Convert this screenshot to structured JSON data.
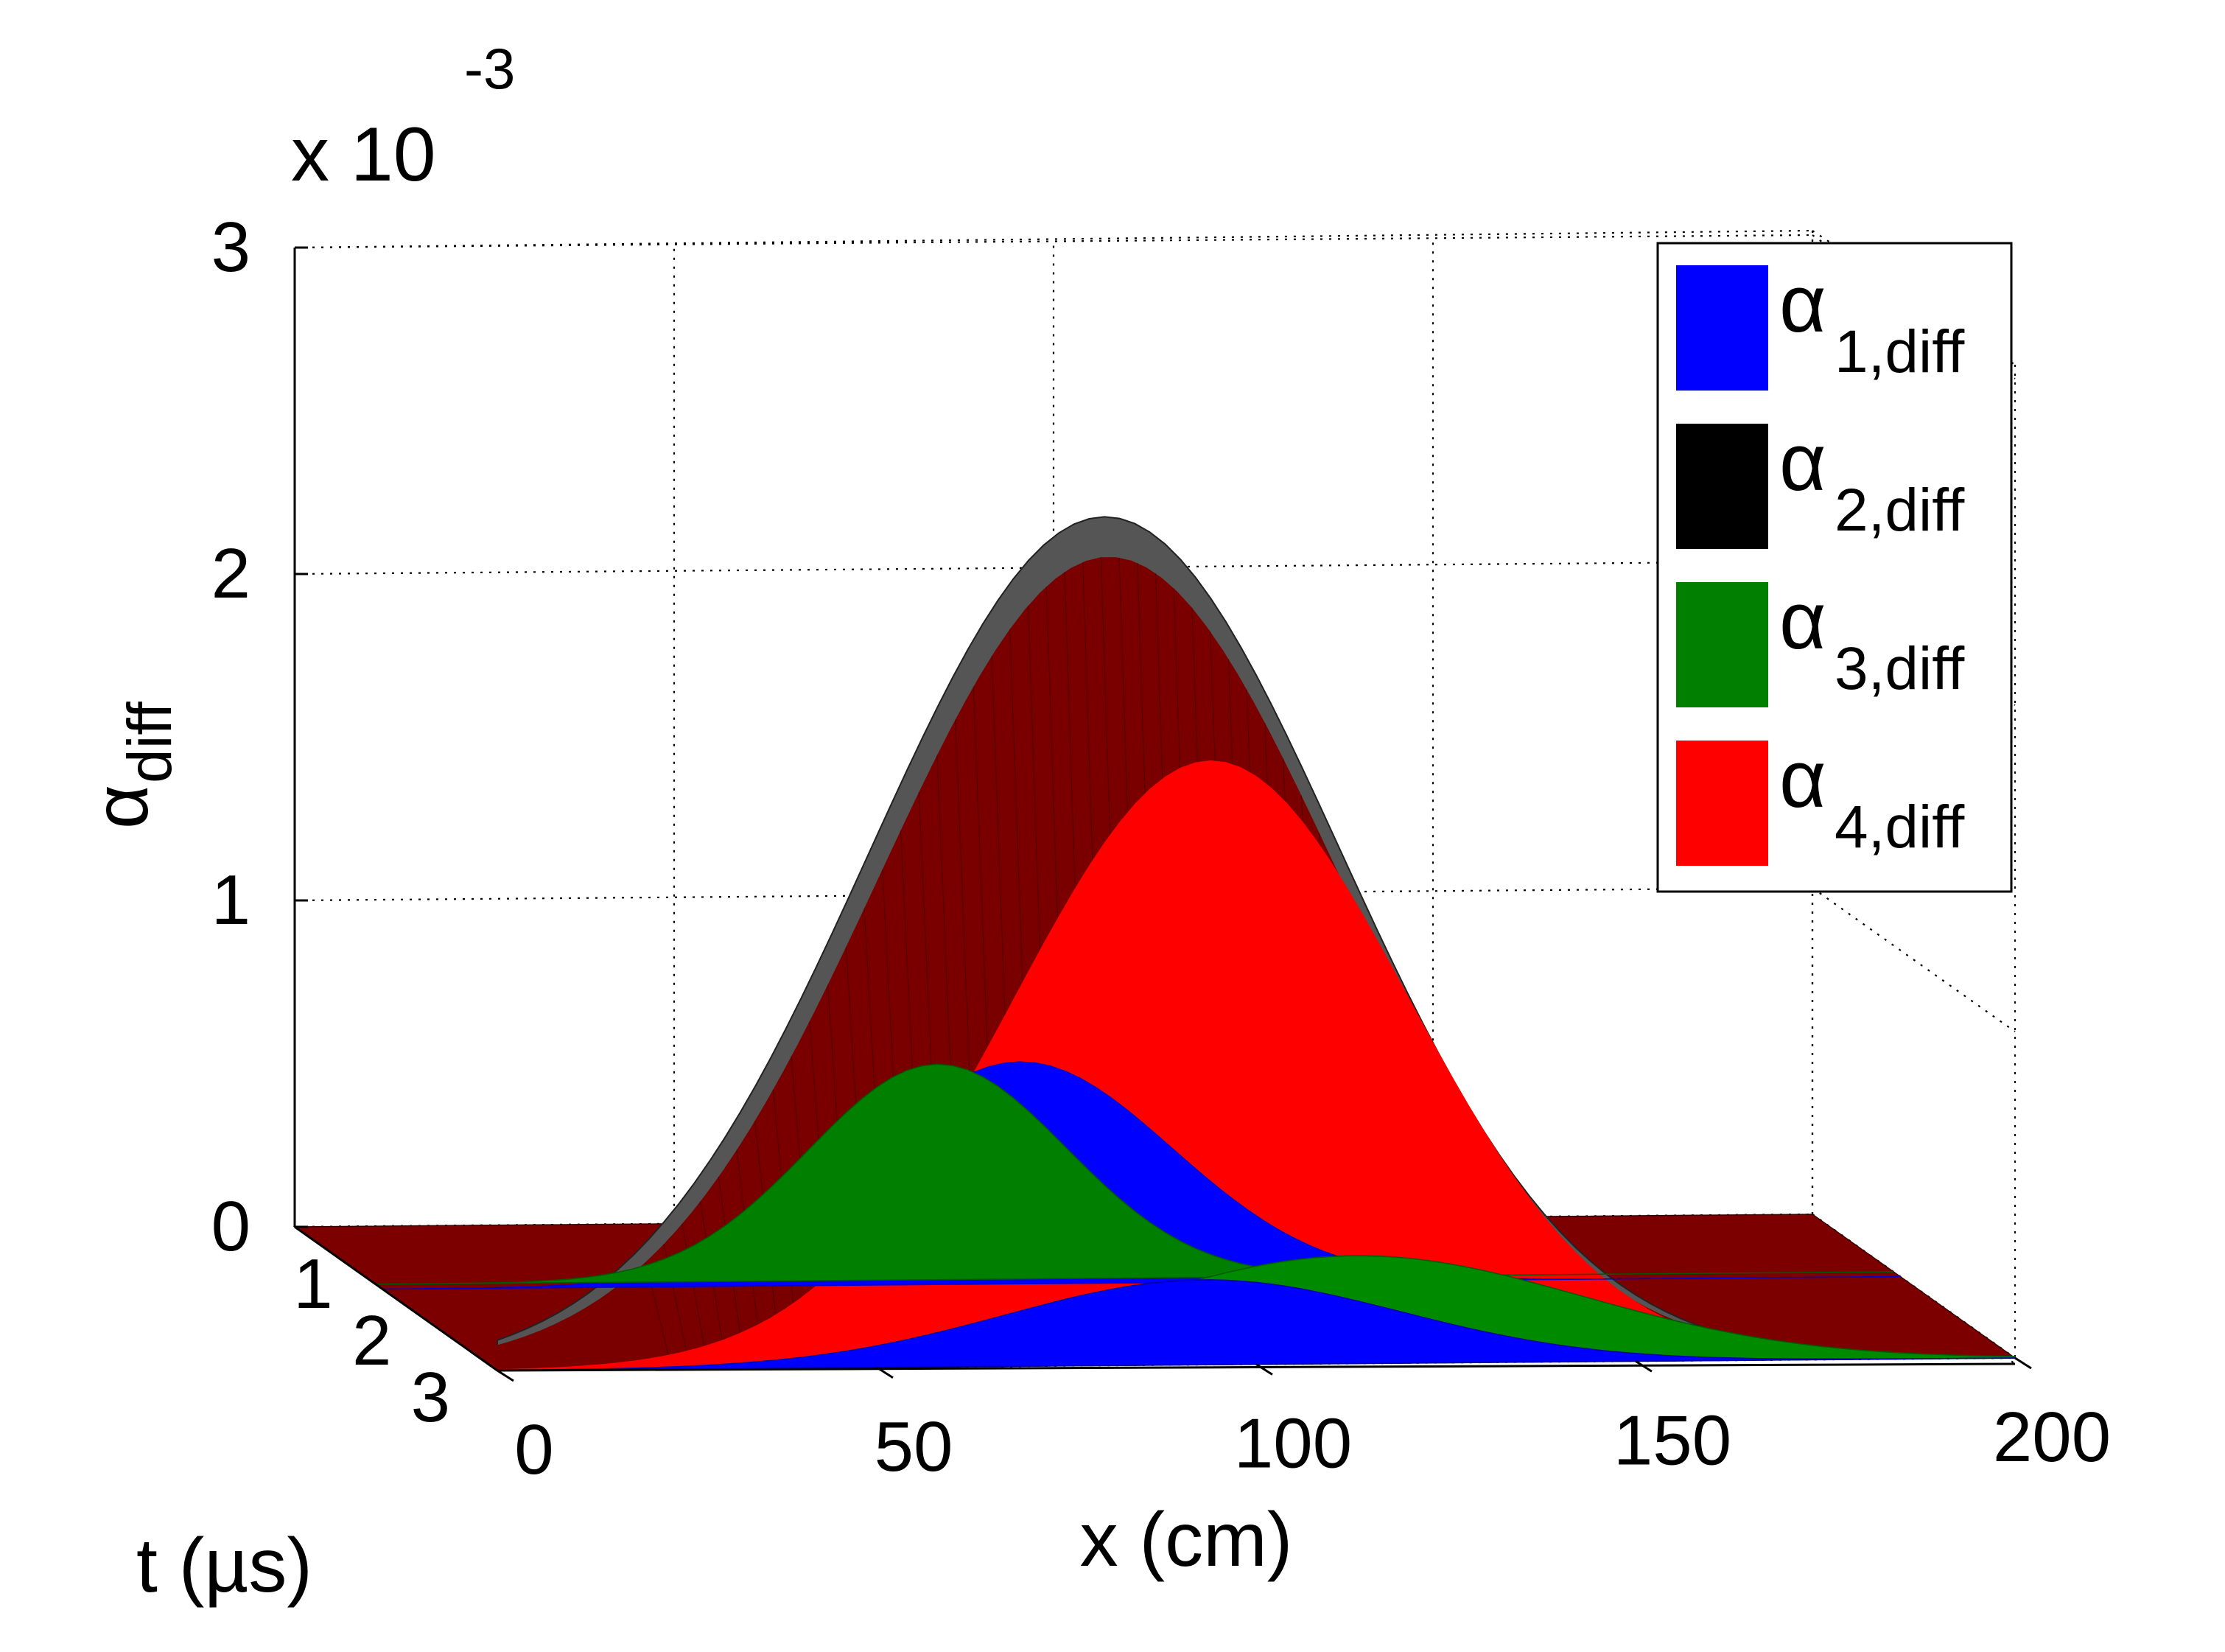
{
  "chart_data": {
    "type": "surface",
    "title": "",
    "exponent_label": {
      "base": "x 10",
      "power": "-3"
    },
    "xlabel": "x (cm)",
    "ylabel": "t (µs)",
    "zlabel": {
      "main": "α",
      "sub": "diff"
    },
    "xlim": [
      0,
      200
    ],
    "ylim": [
      0,
      3
    ],
    "zlim": [
      0,
      3
    ],
    "zscale": 0.001,
    "x_ticks": [
      "0",
      "50",
      "100",
      "150",
      "200"
    ],
    "x_tick_values": [
      0,
      50,
      100,
      150,
      200
    ],
    "t_ticks": [
      "1",
      "2",
      "3"
    ],
    "t_tick_values": [
      1,
      2,
      3
    ],
    "z_ticks": [
      "0",
      "1",
      "2",
      "3"
    ],
    "z_tick_values": [
      0,
      1,
      2,
      3
    ],
    "grid": true,
    "legend_position": "top-right",
    "series": [
      {
        "name": "α 1,diff",
        "legend_main": "α",
        "legend_sub": "1,diff",
        "color": "#0000ff",
        "peak_values": [
          0.26,
          0.68
        ],
        "peak_x": [
          93,
          84
        ],
        "t_values": [
          3,
          1
        ]
      },
      {
        "name": "α 2,diff",
        "legend_main": "α",
        "legend_sub": "2,diff",
        "color": "#000000",
        "peak_values": [
          2.6
        ],
        "peak_x": [
          80
        ],
        "t_values": [
          3
        ]
      },
      {
        "name": "α 3,diff",
        "legend_main": "α",
        "legend_sub": "3,diff",
        "color": "#007f00",
        "peak_values": [
          0.33,
          0.66
        ],
        "peak_x": [
          113,
          74
        ],
        "t_values": [
          3,
          1
        ]
      },
      {
        "name": "α 4,diff",
        "legend_main": "α",
        "legend_sub": "4,diff",
        "color": "#ff0000",
        "peak_values": [
          1.85
        ],
        "peak_x": [
          94
        ],
        "t_values": [
          3
        ]
      }
    ]
  }
}
